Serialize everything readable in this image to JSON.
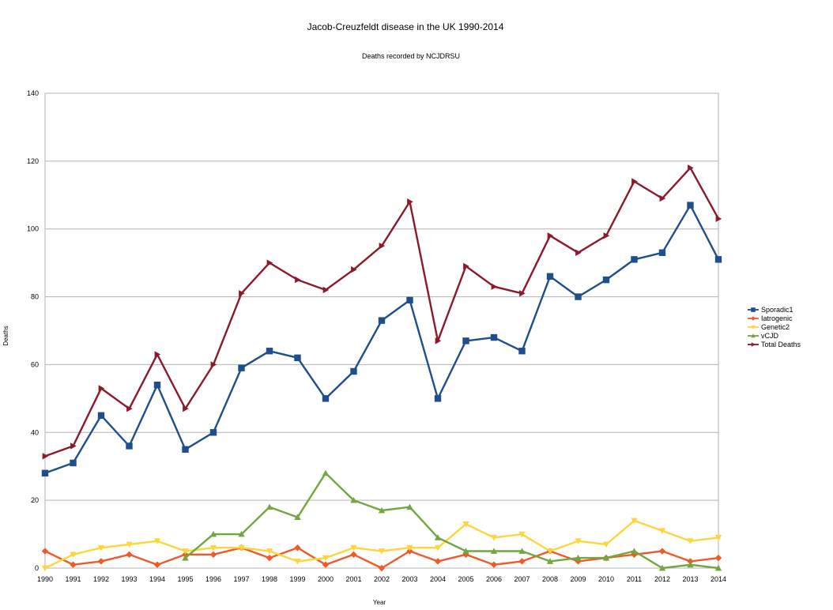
{
  "chart_data": {
    "type": "line",
    "title": "Jacob-Creuzfeldt disease in the UK 1990-2014",
    "subtitle": "Deaths recorded by NCJDRSU",
    "xlabel": "Year",
    "ylabel": "Deaths",
    "ylim": [
      0,
      140
    ],
    "yticks": [
      0,
      20,
      40,
      60,
      80,
      100,
      120,
      140
    ],
    "grid": true,
    "legend_position": "right",
    "categories": [
      "1990",
      "1991",
      "1992",
      "1993",
      "1994",
      "1995",
      "1996",
      "1997",
      "1998",
      "1999",
      "2000",
      "2001",
      "2002",
      "2003",
      "2004",
      "2005",
      "2006",
      "2007",
      "2008",
      "2009",
      "2010",
      "2011",
      "2012",
      "2013",
      "2014"
    ],
    "series": [
      {
        "name": "Sporadic1",
        "color": "#1f4e8c",
        "marker": "square",
        "values": [
          28,
          31,
          45,
          36,
          54,
          35,
          40,
          59,
          64,
          62,
          50,
          58,
          73,
          79,
          50,
          67,
          68,
          64,
          86,
          80,
          85,
          91,
          93,
          107,
          91
        ]
      },
      {
        "name": "Iatrogenic",
        "color": "#ef5a28",
        "marker": "diamond",
        "values": [
          5,
          1,
          2,
          4,
          1,
          4,
          4,
          6,
          3,
          6,
          1,
          4,
          0,
          5,
          2,
          4,
          1,
          2,
          5,
          2,
          3,
          4,
          5,
          2,
          3
        ]
      },
      {
        "name": "Genetic2",
        "color": "#ffd53d",
        "marker": "triangle-down",
        "values": [
          0,
          4,
          6,
          7,
          8,
          5,
          6,
          6,
          5,
          2,
          3,
          6,
          5,
          6,
          6,
          13,
          9,
          10,
          5,
          8,
          7,
          14,
          11,
          8,
          9
        ]
      },
      {
        "name": "vCJD",
        "color": "#73a640",
        "marker": "triangle-up",
        "values": [
          null,
          null,
          null,
          null,
          null,
          3,
          10,
          10,
          18,
          15,
          28,
          20,
          17,
          18,
          9,
          5,
          5,
          5,
          2,
          3,
          3,
          5,
          0,
          1,
          0
        ]
      },
      {
        "name": "Total Deaths",
        "color": "#8b1a2b",
        "marker": "triangle-right",
        "values": [
          33,
          36,
          53,
          47,
          63,
          47,
          60,
          81,
          90,
          85,
          82,
          88,
          95,
          108,
          67,
          89,
          83,
          81,
          98,
          93,
          98,
          114,
          109,
          118,
          103
        ]
      }
    ]
  }
}
